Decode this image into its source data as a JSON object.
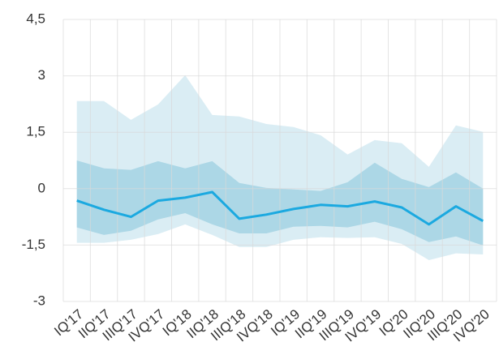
{
  "chart_data": {
    "type": "fan",
    "categories": [
      "IQ'17",
      "IIQ'17",
      "IIIQ'17",
      "IVQ'17",
      "IQ'18",
      "IIQ'18",
      "IIIQ'18",
      "IVQ'18",
      "IQ'19",
      "IIQ'19",
      "IIIQ'19",
      "IVQ'19",
      "IQ'20",
      "IIQ'20",
      "IIIQ'20",
      "IVQ'20"
    ],
    "series": [
      {
        "color": "#1ba9e0",
        "values": [
          -0.32,
          -0.56,
          -0.75,
          -0.32,
          -0.24,
          -0.09,
          -0.8,
          -0.69,
          -0.54,
          -0.43,
          -0.47,
          -0.34,
          -0.5,
          -0.95,
          -0.47,
          -0.86
        ]
      }
    ],
    "bands": [
      {
        "color": "#daedf4",
        "upper": [
          2.33,
          2.33,
          1.83,
          2.24,
          3.02,
          1.96,
          1.92,
          1.72,
          1.64,
          1.42,
          0.91,
          1.29,
          1.21,
          0.58,
          1.68,
          1.51
        ],
        "lower": [
          -1.44,
          -1.44,
          -1.36,
          -1.21,
          -0.95,
          -1.23,
          -1.55,
          -1.55,
          -1.36,
          -1.29,
          -1.31,
          -1.29,
          -1.47,
          -1.9,
          -1.72,
          -1.75
        ]
      },
      {
        "color": "#acd7e6",
        "upper": [
          0.75,
          0.54,
          0.5,
          0.73,
          0.54,
          0.73,
          0.15,
          0.02,
          -0.02,
          -0.06,
          0.17,
          0.69,
          0.26,
          0.04,
          0.43,
          0
        ],
        "lower": [
          -1.03,
          -1.23,
          -1.12,
          -0.82,
          -0.65,
          -0.95,
          -1.19,
          -1.19,
          -1.01,
          -0.99,
          -1.03,
          -0.88,
          -1.08,
          -1.42,
          -1.27,
          -1.51
        ]
      }
    ],
    "ylim": [
      -3,
      4.5
    ],
    "yticks": [
      -3,
      {
        "value": -1.5,
        "label": "-1,5"
      },
      0,
      {
        "value": 1.5,
        "label": "1,5"
      },
      3,
      {
        "value": 4.5,
        "label": "4,5"
      }
    ],
    "grid": true
  }
}
